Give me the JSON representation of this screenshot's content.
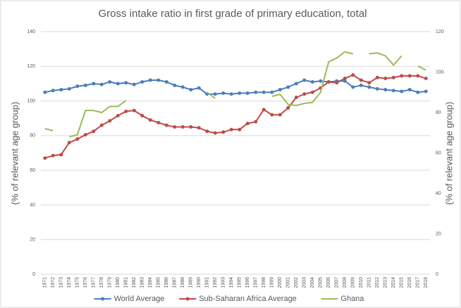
{
  "chart_data": {
    "type": "line",
    "title": "Gross intake ratio in first grade of primary education, total",
    "ylabel": "(% of relevant age group)",
    "y2label": "(% of relevant age group)",
    "categories": [
      "1971",
      "1972",
      "1973",
      "1974",
      "1975",
      "1976",
      "1977",
      "1978",
      "1979",
      "1980",
      "1981",
      "1982",
      "1983",
      "1984",
      "1985",
      "1986",
      "1987",
      "1988",
      "1989",
      "1990",
      "1991",
      "1992",
      "1993",
      "1994",
      "1995",
      "1996",
      "1997",
      "1998",
      "1999",
      "2000",
      "2001",
      "2002",
      "2003",
      "2004",
      "2005",
      "2006",
      "2007",
      "2008",
      "2009",
      "2010",
      "2011",
      "2012",
      "2013",
      "2014",
      "2015",
      "2016",
      "2017",
      "2018"
    ],
    "ylim": [
      0,
      140
    ],
    "yticks": [
      0,
      20,
      40,
      60,
      80,
      100,
      120,
      140
    ],
    "y2lim": [
      0,
      120
    ],
    "y2ticks": [
      0,
      20,
      40,
      60,
      80,
      100,
      120
    ],
    "grid": true,
    "legend": "bottom",
    "series": [
      {
        "name": "World Average",
        "color": "#4a7ebb",
        "marker": true,
        "values": [
          105,
          106,
          106.5,
          107,
          108.5,
          109,
          110,
          109.5,
          111,
          110,
          110.5,
          109.5,
          111,
          112,
          112,
          111,
          109,
          108,
          106.5,
          107.5,
          104,
          104,
          104.5,
          104,
          104.5,
          104.5,
          105,
          105,
          105,
          106.5,
          108,
          110,
          112,
          111,
          111.5,
          111,
          111.5,
          111.5,
          108,
          109,
          108,
          107,
          106.5,
          106,
          105.5,
          106.5,
          105,
          105.5
        ]
      },
      {
        "name": "Sub-Saharan Africa Average",
        "color": "#be4b48",
        "marker": true,
        "values": [
          67,
          68.5,
          69,
          76,
          78,
          80.5,
          82.5,
          86,
          88.5,
          91.5,
          94,
          94.5,
          91.5,
          89,
          87.5,
          86,
          85,
          85,
          85,
          84.5,
          82.5,
          81.5,
          82,
          83.5,
          83.5,
          87,
          88,
          95,
          92,
          92,
          96,
          102,
          104,
          105,
          107.5,
          111,
          110.5,
          113,
          115,
          112,
          110.5,
          113.5,
          113,
          113.5,
          114.5,
          114.5,
          114.5,
          113
        ]
      },
      {
        "name": "Ghana",
        "color": "#9bbb59",
        "marker": false,
        "axis": "y2",
        "values": [
          72,
          71,
          null,
          68,
          69,
          81,
          81,
          80,
          83,
          83,
          86,
          null,
          null,
          null,
          null,
          null,
          null,
          null,
          null,
          null,
          90,
          87,
          null,
          null,
          null,
          null,
          null,
          null,
          88,
          89,
          84,
          83.5,
          84.5,
          85,
          90,
          105,
          107,
          110,
          109,
          null,
          109,
          109.5,
          108,
          103.5,
          108,
          null,
          103,
          101
        ]
      }
    ]
  }
}
